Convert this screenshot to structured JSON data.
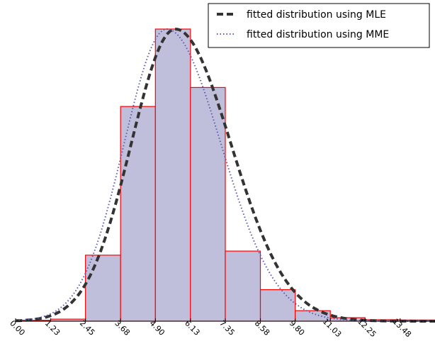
{
  "chart_data": {
    "type": "bar",
    "subtype": "histogram with fitted density curves",
    "bins": [
      0.0,
      1.23,
      2.45,
      3.68,
      4.9,
      6.13,
      7.35,
      8.58,
      9.8,
      11.03,
      12.25,
      13.48,
      14.7
    ],
    "x_tick_labels": [
      "0.00",
      "1.23",
      "2.45",
      "3.68",
      "4.90",
      "6.13",
      "7.35",
      "8.58",
      "9.80",
      "11.03",
      "12.25",
      "13.48"
    ],
    "relative_heights": [
      0.003,
      0.007,
      0.226,
      0.735,
      1.0,
      0.8,
      0.24,
      0.108,
      0.036,
      0.012,
      0.005,
      0.004
    ],
    "bar_fill": "#bfbfdb",
    "bar_edge": "#ff0000",
    "series": [
      {
        "name": "fitted distribution using MLE",
        "style": "dashed",
        "color": "#333333",
        "mean": 5.6,
        "sd": 1.55,
        "skew_right_sd": 1.95
      },
      {
        "name": "fitted distribution using MME",
        "style": "dotted",
        "color": "#5b5bb0",
        "mean": 5.3,
        "sd": 1.5,
        "skew_right_sd": 1.9
      }
    ],
    "legend_position": "top-right",
    "grid": false,
    "xlabel": "",
    "ylabel": "",
    "title": ""
  }
}
